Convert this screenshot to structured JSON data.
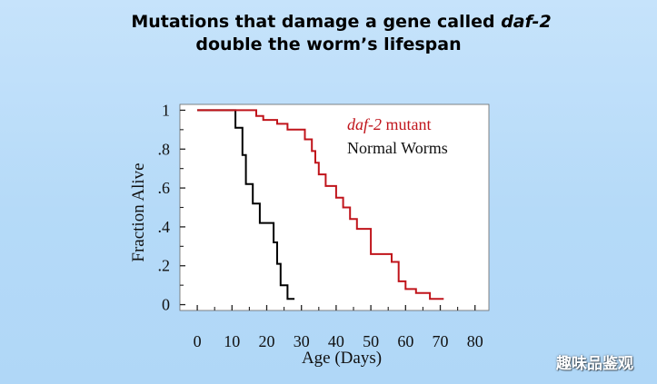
{
  "slide": {
    "title_line1_prefix": "Mutations that damage a gene called ",
    "title_line1_italic": "daf-2",
    "title_line2": "double the worm’s lifespan",
    "watermark": "趣味品鉴观"
  },
  "colors": {
    "mutant": "#c0141b",
    "normal": "#000000",
    "background": "#b5daf8",
    "plot_bg": "#ffffff"
  },
  "chart_data": {
    "type": "line",
    "step": true,
    "title": "Mutations that damage a gene called daf-2 double the worm’s lifespan",
    "xlabel": "Age (Days)",
    "ylabel": "Fraction Alive",
    "xlim": [
      -5,
      84
    ],
    "ylim": [
      -0.03,
      1.03
    ],
    "xticks": [
      0,
      10,
      20,
      30,
      40,
      50,
      60,
      70,
      80
    ],
    "xtick_labels": [
      "0",
      "10",
      "20",
      "30",
      "40",
      "50",
      "60",
      "70",
      "80"
    ],
    "yticks": [
      0,
      0.2,
      0.4,
      0.6,
      0.8,
      1
    ],
    "ytick_labels": [
      "0",
      ".2",
      ".4",
      ".6",
      ".8",
      "1"
    ],
    "legend": [
      {
        "label_italic": "daf-2",
        "label_rest": " mutant",
        "series": "daf-2 mutant"
      },
      {
        "label_italic": "",
        "label_rest": "Normal Worms",
        "series": "Normal Worms"
      }
    ],
    "series": [
      {
        "name": "Normal Worms",
        "x": [
          0,
          11,
          11,
          13,
          13,
          14,
          14,
          16,
          16,
          18,
          18,
          22,
          22,
          23,
          23,
          24,
          24,
          26,
          26,
          28
        ],
        "y": [
          1,
          1,
          0.91,
          0.91,
          0.77,
          0.77,
          0.62,
          0.62,
          0.52,
          0.52,
          0.42,
          0.42,
          0.32,
          0.32,
          0.21,
          0.21,
          0.1,
          0.1,
          0.03,
          0.03
        ]
      },
      {
        "name": "daf-2 mutant",
        "x": [
          0,
          17,
          17,
          19,
          19,
          23,
          23,
          26,
          26,
          31,
          31,
          33,
          33,
          34,
          34,
          35,
          35,
          37,
          37,
          40,
          40,
          42,
          42,
          44,
          44,
          46,
          46,
          50,
          50,
          56,
          56,
          58,
          58,
          60,
          60,
          63,
          63,
          67,
          67,
          71
        ],
        "y": [
          1,
          1,
          0.97,
          0.97,
          0.95,
          0.95,
          0.93,
          0.93,
          0.9,
          0.9,
          0.85,
          0.85,
          0.79,
          0.79,
          0.73,
          0.73,
          0.67,
          0.67,
          0.61,
          0.61,
          0.55,
          0.55,
          0.5,
          0.5,
          0.44,
          0.44,
          0.39,
          0.39,
          0.26,
          0.26,
          0.22,
          0.22,
          0.12,
          0.12,
          0.08,
          0.08,
          0.06,
          0.06,
          0.03,
          0.03
        ]
      }
    ]
  }
}
